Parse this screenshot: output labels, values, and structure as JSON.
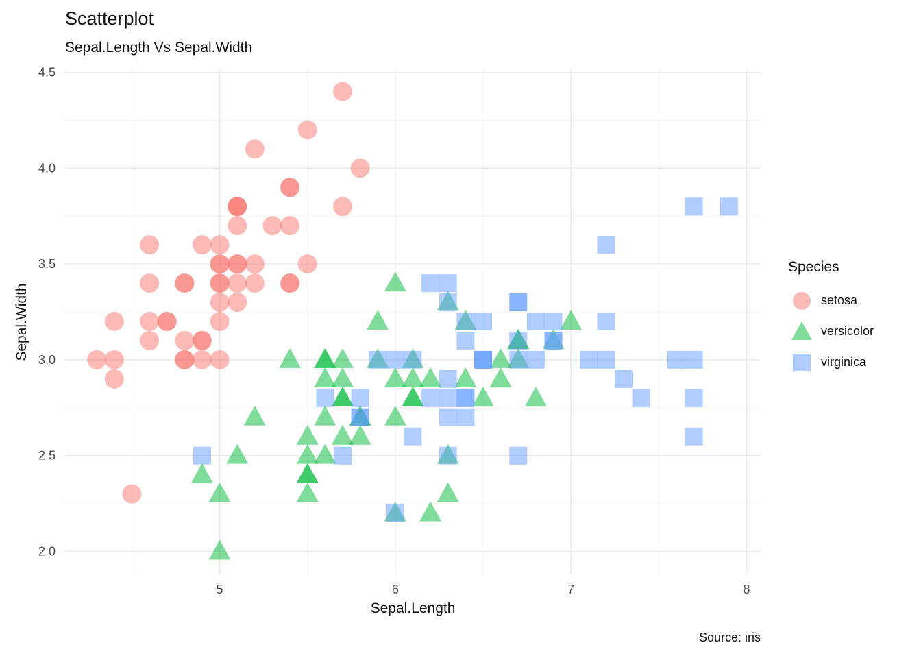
{
  "title": "Scatterplot",
  "subtitle": "Sepal.Length Vs Sepal.Width",
  "caption": "Source: iris",
  "legend": {
    "title": "Species"
  },
  "chart_data": {
    "type": "scatter",
    "title": "Scatterplot",
    "subtitle": "Sepal.Length Vs Sepal.Width",
    "xlabel": "Sepal.Length",
    "ylabel": "Sepal.Width",
    "xlim": [
      4.12,
      8.08
    ],
    "ylim": [
      1.88,
      4.52
    ],
    "x_ticks": [
      5,
      6,
      7,
      8
    ],
    "x_tick_labels": [
      "5",
      "6",
      "7",
      "8"
    ],
    "y_ticks": [
      2.0,
      2.5,
      3.0,
      3.5,
      4.0,
      4.5
    ],
    "y_tick_labels": [
      "2.0",
      "2.5",
      "3.0",
      "3.5",
      "4.0",
      "4.5"
    ],
    "x_minor": [
      4.5,
      5.5,
      6.5,
      7.5
    ],
    "y_minor": [
      2.25,
      2.75,
      3.25,
      3.75,
      4.25
    ],
    "grid": true,
    "legend_position": "right",
    "point_opacity": 0.5,
    "series": [
      {
        "name": "setosa",
        "shape": "circle",
        "color": "#F8766D",
        "points": [
          [
            5.1,
            3.5
          ],
          [
            4.9,
            3.0
          ],
          [
            4.7,
            3.2
          ],
          [
            4.6,
            3.1
          ],
          [
            5.0,
            3.6
          ],
          [
            5.4,
            3.9
          ],
          [
            4.6,
            3.4
          ],
          [
            5.0,
            3.4
          ],
          [
            4.4,
            2.9
          ],
          [
            4.9,
            3.1
          ],
          [
            5.4,
            3.7
          ],
          [
            4.8,
            3.4
          ],
          [
            4.8,
            3.0
          ],
          [
            4.3,
            3.0
          ],
          [
            5.8,
            4.0
          ],
          [
            5.7,
            4.4
          ],
          [
            5.4,
            3.9
          ],
          [
            5.1,
            3.5
          ],
          [
            5.7,
            3.8
          ],
          [
            5.1,
            3.8
          ],
          [
            5.4,
            3.4
          ],
          [
            5.1,
            3.7
          ],
          [
            4.6,
            3.6
          ],
          [
            5.1,
            3.3
          ],
          [
            4.8,
            3.4
          ],
          [
            5.0,
            3.0
          ],
          [
            5.0,
            3.4
          ],
          [
            5.2,
            3.5
          ],
          [
            5.2,
            3.4
          ],
          [
            4.7,
            3.2
          ],
          [
            4.8,
            3.1
          ],
          [
            5.4,
            3.4
          ],
          [
            5.2,
            4.1
          ],
          [
            5.5,
            4.2
          ],
          [
            4.9,
            3.1
          ],
          [
            5.0,
            3.2
          ],
          [
            5.5,
            3.5
          ],
          [
            4.9,
            3.6
          ],
          [
            4.4,
            3.0
          ],
          [
            5.1,
            3.4
          ],
          [
            5.0,
            3.5
          ],
          [
            4.5,
            2.3
          ],
          [
            4.4,
            3.2
          ],
          [
            5.0,
            3.5
          ],
          [
            5.1,
            3.8
          ],
          [
            4.8,
            3.0
          ],
          [
            5.1,
            3.8
          ],
          [
            4.6,
            3.2
          ],
          [
            5.3,
            3.7
          ],
          [
            5.0,
            3.3
          ]
        ]
      },
      {
        "name": "versicolor",
        "shape": "triangle",
        "color": "#00BA38",
        "points": [
          [
            7.0,
            3.2
          ],
          [
            6.4,
            3.2
          ],
          [
            6.9,
            3.1
          ],
          [
            5.5,
            2.3
          ],
          [
            6.5,
            2.8
          ],
          [
            5.7,
            2.8
          ],
          [
            6.3,
            3.3
          ],
          [
            4.9,
            2.4
          ],
          [
            6.6,
            2.9
          ],
          [
            5.2,
            2.7
          ],
          [
            5.0,
            2.0
          ],
          [
            5.9,
            3.0
          ],
          [
            6.0,
            2.2
          ],
          [
            6.1,
            2.9
          ],
          [
            5.6,
            2.9
          ],
          [
            6.7,
            3.1
          ],
          [
            5.6,
            3.0
          ],
          [
            5.8,
            2.7
          ],
          [
            6.2,
            2.2
          ],
          [
            5.6,
            2.5
          ],
          [
            5.9,
            3.2
          ],
          [
            6.1,
            2.8
          ],
          [
            6.3,
            2.5
          ],
          [
            6.1,
            2.8
          ],
          [
            6.4,
            2.9
          ],
          [
            6.6,
            3.0
          ],
          [
            6.8,
            2.8
          ],
          [
            6.7,
            3.0
          ],
          [
            6.0,
            2.9
          ],
          [
            5.7,
            2.6
          ],
          [
            5.5,
            2.4
          ],
          [
            5.5,
            2.4
          ],
          [
            5.8,
            2.7
          ],
          [
            6.0,
            2.7
          ],
          [
            5.4,
            3.0
          ],
          [
            6.0,
            3.4
          ],
          [
            6.7,
            3.1
          ],
          [
            6.3,
            2.3
          ],
          [
            5.6,
            3.0
          ],
          [
            5.5,
            2.5
          ],
          [
            5.5,
            2.6
          ],
          [
            6.1,
            3.0
          ],
          [
            5.8,
            2.6
          ],
          [
            5.0,
            2.3
          ],
          [
            5.6,
            2.7
          ],
          [
            5.7,
            3.0
          ],
          [
            5.7,
            2.9
          ],
          [
            6.2,
            2.9
          ],
          [
            5.1,
            2.5
          ],
          [
            5.7,
            2.8
          ]
        ]
      },
      {
        "name": "virginica",
        "shape": "square",
        "color": "#619CFF",
        "points": [
          [
            6.3,
            3.3
          ],
          [
            5.8,
            2.7
          ],
          [
            7.1,
            3.0
          ],
          [
            6.3,
            2.9
          ],
          [
            6.5,
            3.0
          ],
          [
            7.6,
            3.0
          ],
          [
            4.9,
            2.5
          ],
          [
            7.3,
            2.9
          ],
          [
            6.7,
            2.5
          ],
          [
            7.2,
            3.6
          ],
          [
            6.5,
            3.2
          ],
          [
            6.4,
            2.7
          ],
          [
            6.8,
            3.0
          ],
          [
            5.7,
            2.5
          ],
          [
            5.8,
            2.8
          ],
          [
            6.4,
            3.2
          ],
          [
            6.5,
            3.0
          ],
          [
            7.7,
            3.8
          ],
          [
            7.7,
            2.6
          ],
          [
            6.0,
            2.2
          ],
          [
            6.9,
            3.2
          ],
          [
            5.6,
            2.8
          ],
          [
            7.7,
            2.8
          ],
          [
            6.3,
            2.7
          ],
          [
            6.7,
            3.3
          ],
          [
            7.2,
            3.2
          ],
          [
            6.2,
            2.8
          ],
          [
            6.1,
            3.0
          ],
          [
            6.4,
            2.8
          ],
          [
            7.2,
            3.0
          ],
          [
            7.4,
            2.8
          ],
          [
            7.9,
            3.8
          ],
          [
            6.4,
            2.8
          ],
          [
            6.3,
            2.8
          ],
          [
            6.1,
            2.6
          ],
          [
            7.7,
            3.0
          ],
          [
            6.3,
            3.4
          ],
          [
            6.4,
            3.1
          ],
          [
            6.0,
            3.0
          ],
          [
            6.9,
            3.1
          ],
          [
            6.7,
            3.1
          ],
          [
            6.9,
            3.1
          ],
          [
            5.8,
            2.7
          ],
          [
            6.8,
            3.2
          ],
          [
            6.7,
            3.3
          ],
          [
            6.7,
            3.0
          ],
          [
            6.3,
            2.5
          ],
          [
            6.5,
            3.0
          ],
          [
            6.2,
            3.4
          ],
          [
            5.9,
            3.0
          ]
        ]
      }
    ]
  }
}
